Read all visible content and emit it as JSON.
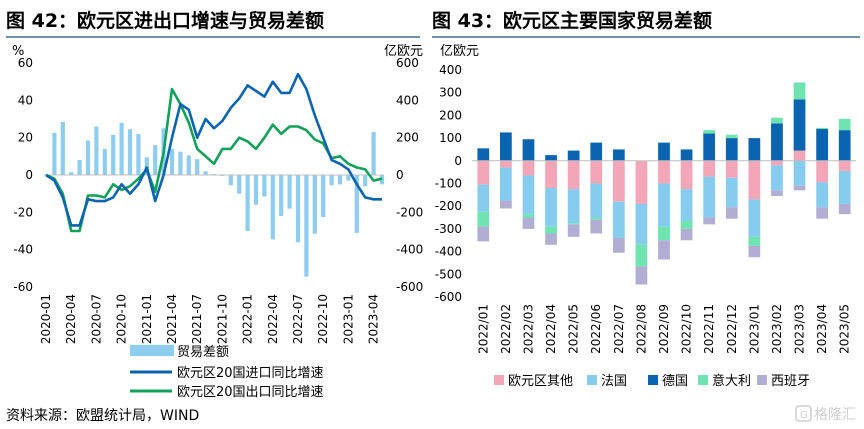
{
  "colors": {
    "title_rule": "#1f4e79",
    "light_blue": "#8fcdf0",
    "dark_blue": "#0b64b0",
    "green": "#12a15a",
    "pink": "#f3a6b8",
    "sky": "#86ccef",
    "mint": "#6fe3b0",
    "lavender": "#b2aed3",
    "axis": "#bfbfbf",
    "text": "#000000"
  },
  "source": "资料来源：欧盟统计局，WIND",
  "watermark": "格隆汇",
  "chart_data": [
    {
      "type": "bar+line",
      "title": "图 42：欧元区进出口增速与贸易差额",
      "left_unit": "%",
      "right_unit": "亿欧元",
      "left_ylim": [
        -60,
        60
      ],
      "left_ticks": [
        60,
        40,
        20,
        0,
        -20,
        -40,
        -60
      ],
      "right_ylim": [
        -600,
        600
      ],
      "right_ticks": [
        600,
        400,
        200,
        0,
        -200,
        -400,
        -600
      ],
      "n": 41,
      "x_tick_labels": [
        "2020-01",
        "2020-04",
        "2020-07",
        "2020-10",
        "2021-01",
        "2021-04",
        "2021-07",
        "2021-10",
        "2022-01",
        "2022-04",
        "2022-07",
        "2022-10",
        "2023-01",
        "2023-04"
      ],
      "x_tick_step": 3,
      "series": [
        {
          "name": "贸易差额",
          "type": "bar",
          "axis": "right",
          "values": [
            0,
            225,
            285,
            15,
            80,
            185,
            260,
            140,
            215,
            280,
            245,
            220,
            95,
            160,
            250,
            140,
            125,
            105,
            85,
            20,
            5,
            -5,
            -55,
            -100,
            -300,
            -160,
            -115,
            -345,
            -220,
            -180,
            -360,
            -545,
            -315,
            -225,
            -55,
            -50,
            -30,
            -310,
            -60,
            230,
            -50
          ]
        },
        {
          "name": "欧元区20国进口同比增速",
          "type": "line",
          "axis": "left",
          "values": [
            0,
            -3,
            -12,
            -27,
            -27,
            -13,
            -14,
            -14,
            -12,
            -5,
            -10,
            -5,
            4,
            -14,
            0,
            20,
            38,
            35,
            20,
            30,
            25,
            29,
            36,
            41,
            48,
            45,
            42,
            50,
            44,
            44,
            54,
            46,
            32,
            20,
            8,
            6,
            3,
            -5,
            -12,
            -13,
            -13
          ]
        },
        {
          "name": "欧元区20国出口同比增速",
          "type": "line",
          "axis": "left",
          "values": [
            0,
            -2,
            -10,
            -30,
            -30,
            -11,
            -11,
            -12,
            -5,
            -8,
            -6,
            -2,
            3,
            -9,
            12,
            46,
            38,
            28,
            14,
            10,
            6,
            14,
            14,
            20,
            18,
            14,
            20,
            27,
            22,
            26,
            26,
            24,
            19,
            17,
            9,
            10,
            6,
            4,
            3,
            -3,
            -2
          ]
        }
      ],
      "legend": [
        "贸易差额",
        "欧元区20国进口同比增速",
        "欧元区20国出口同比增速"
      ],
      "legend_placement": "bottom",
      "grid": false
    },
    {
      "type": "stacked-bar",
      "title": "图 43：欧元区主要国家贸易差额",
      "unit": "亿欧元",
      "ylim": [
        -600,
        400
      ],
      "ticks": [
        400,
        300,
        200,
        100,
        0,
        -100,
        -200,
        -300,
        -400,
        -500,
        -600
      ],
      "categories": [
        "2022/01",
        "2022/02",
        "2022/03",
        "2022/04",
        "2022/05",
        "2022/06",
        "2022/07",
        "2022/08",
        "2022/09",
        "2022/10",
        "2022/11",
        "2022/12",
        "2023/01",
        "2023/02",
        "2023/03",
        "2023/04",
        "2023/05"
      ],
      "series": [
        {
          "name": "欧元区其他",
          "values": [
            -105,
            -30,
            -65,
            -120,
            -125,
            -100,
            -180,
            -190,
            -100,
            -125,
            -70,
            -75,
            -170,
            -20,
            45,
            -95,
            -45
          ]
        },
        {
          "name": "法国",
          "values": [
            -120,
            -145,
            -170,
            -170,
            -150,
            -150,
            -160,
            -180,
            -190,
            -140,
            -180,
            -130,
            -165,
            -110,
            -110,
            -110,
            -145
          ]
        },
        {
          "name": "德国",
          "values": [
            55,
            125,
            95,
            25,
            45,
            80,
            50,
            0,
            80,
            50,
            120,
            100,
            100,
            165,
            225,
            140,
            135
          ]
        },
        {
          "name": "意大利",
          "values": [
            -65,
            0,
            -15,
            -30,
            -5,
            -10,
            0,
            -95,
            -60,
            -35,
            15,
            15,
            -40,
            25,
            75,
            5,
            50
          ]
        },
        {
          "name": "西班牙",
          "values": [
            -65,
            -35,
            -50,
            -50,
            -55,
            -60,
            -65,
            -80,
            -85,
            -50,
            -30,
            -50,
            -50,
            -25,
            -20,
            -50,
            -45
          ]
        }
      ],
      "legend": [
        "欧元区其他",
        "法国",
        "德国",
        "意大利",
        "西班牙"
      ],
      "legend_placement": "bottom",
      "grid": false
    }
  ]
}
